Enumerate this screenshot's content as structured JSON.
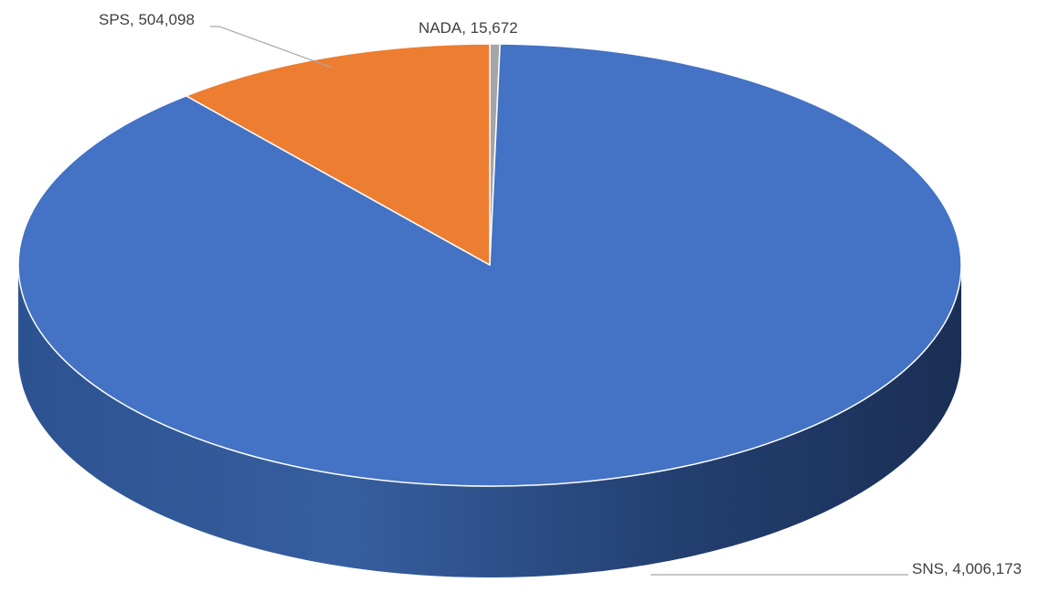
{
  "chart_data": {
    "type": "pie",
    "style": "3d",
    "title": "",
    "slices": [
      {
        "label": "NADA",
        "value": 15672,
        "display": "NADA, 15,672",
        "color": "#a5a5a5"
      },
      {
        "label": "SNS",
        "value": 4006173,
        "display": "SNS, 4,006,173",
        "color": "#4472c4"
      },
      {
        "label": "SPS",
        "value": 504098,
        "display": "SPS, 504,098",
        "color": "#ed7d31"
      }
    ],
    "legend": "none"
  }
}
